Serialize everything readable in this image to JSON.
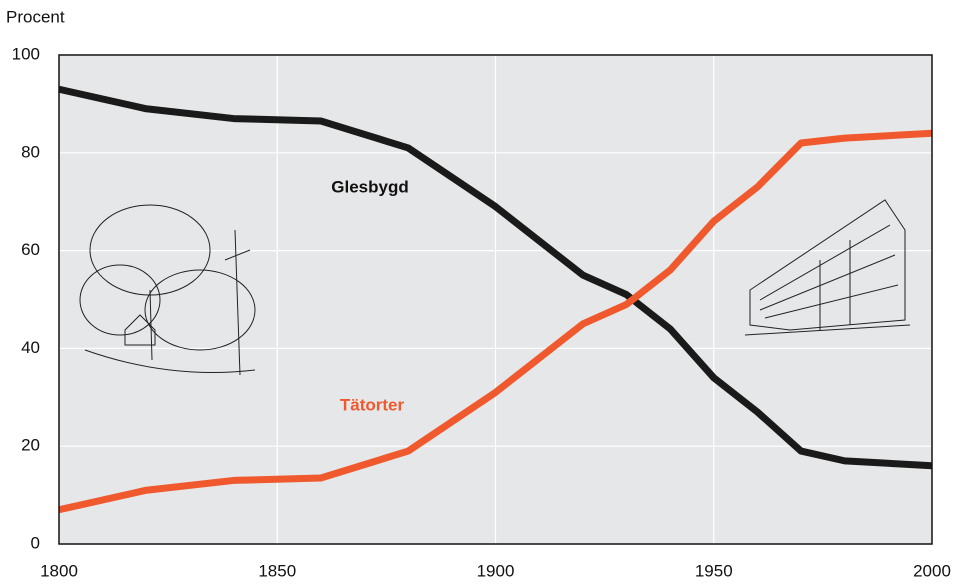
{
  "chart_data": {
    "type": "line",
    "y_axis_label": "Procent",
    "x": [
      1800,
      1820,
      1840,
      1860,
      1880,
      1900,
      1920,
      1930,
      1940,
      1950,
      1960,
      1970,
      1980,
      2000
    ],
    "series": [
      {
        "name": "Glesbygd",
        "color": "#1a1a1a",
        "values": [
          93,
          89,
          87,
          86.5,
          81,
          69,
          55,
          51,
          44,
          34,
          27,
          19,
          17,
          16
        ]
      },
      {
        "name": "Tätorter",
        "color": "#f0592e",
        "values": [
          7,
          11,
          13,
          13.5,
          19,
          31,
          45,
          49,
          56,
          66,
          73,
          82,
          83,
          84
        ]
      }
    ],
    "xlim": [
      1800,
      2000
    ],
    "xticks": [
      1800,
      1850,
      1900,
      1950,
      2000
    ],
    "ylim": [
      0,
      100
    ],
    "yticks": [
      0,
      20,
      40,
      60,
      80,
      100
    ],
    "grid": true
  }
}
